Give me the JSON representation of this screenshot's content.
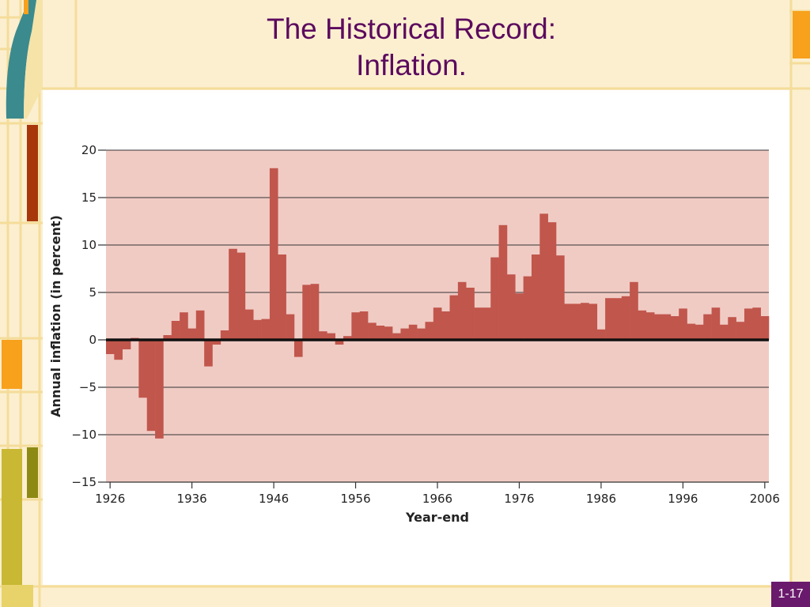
{
  "slide": {
    "title_line1": "The Historical Record:",
    "title_line2": "Inflation.",
    "page_number": "1-17",
    "colors": {
      "title": "#5c0a5e",
      "background": "#fbefd0",
      "orange_accent": "#f7a11c",
      "teal_accent": "#3b8a8e",
      "olive_accent": "#c8b834",
      "page_badge": "#6a1a6c"
    }
  },
  "chart_data": {
    "type": "bar",
    "title": "",
    "xlabel": "Year-end",
    "ylabel": "Annual inflation (in percent)",
    "ylim": [
      -15,
      20
    ],
    "y_ticks": [
      20,
      15,
      10,
      5,
      0,
      -5,
      -10,
      -15
    ],
    "y_tick_labels": [
      "20",
      "15",
      "10",
      "5",
      "0",
      "−5",
      "−10",
      "−15"
    ],
    "x_ticks": [
      1926,
      1936,
      1946,
      1956,
      1966,
      1976,
      1986,
      1996,
      2006
    ],
    "x_tick_labels": [
      "1926",
      "1936",
      "1946",
      "1956",
      "1966",
      "1976",
      "1986",
      "1996",
      "2006"
    ],
    "grid": true,
    "colors": {
      "bar": "#c1564c",
      "plot_background": "#f0cbc4",
      "zero_line": "#111111",
      "grid": "#333333"
    },
    "categories": [
      1926,
      1927,
      1928,
      1929,
      1930,
      1931,
      1932,
      1933,
      1934,
      1935,
      1936,
      1937,
      1938,
      1939,
      1940,
      1941,
      1942,
      1943,
      1944,
      1945,
      1946,
      1947,
      1948,
      1949,
      1950,
      1951,
      1952,
      1953,
      1954,
      1955,
      1956,
      1957,
      1958,
      1959,
      1960,
      1961,
      1962,
      1963,
      1964,
      1965,
      1966,
      1967,
      1968,
      1969,
      1970,
      1971,
      1972,
      1973,
      1974,
      1975,
      1976,
      1977,
      1978,
      1979,
      1980,
      1981,
      1982,
      1983,
      1984,
      1985,
      1986,
      1987,
      1988,
      1989,
      1990,
      1991,
      1992,
      1993,
      1994,
      1995,
      1996,
      1997,
      1998,
      1999,
      2000,
      2001,
      2002,
      2003,
      2004,
      2005,
      2006
    ],
    "values": [
      -1.5,
      -2.1,
      -1.0,
      0.2,
      -6.1,
      -9.6,
      -10.4,
      0.5,
      2.0,
      2.9,
      1.2,
      3.1,
      -2.8,
      -0.5,
      1.0,
      9.6,
      9.2,
      3.2,
      2.1,
      2.2,
      18.1,
      9.0,
      2.7,
      -1.8,
      5.8,
      5.9,
      0.9,
      0.7,
      -0.5,
      0.4,
      2.9,
      3.0,
      1.8,
      1.5,
      1.4,
      0.7,
      1.2,
      1.6,
      1.2,
      1.9,
      3.4,
      3.0,
      4.7,
      6.1,
      5.5,
      3.4,
      3.4,
      8.7,
      12.1,
      6.9,
      4.9,
      6.7,
      9.0,
      13.3,
      12.4,
      8.9,
      3.8,
      3.8,
      3.9,
      3.8,
      1.1,
      4.4,
      4.4,
      4.6,
      6.1,
      3.1,
      2.9,
      2.7,
      2.7,
      2.5,
      3.3,
      1.7,
      1.6,
      2.7,
      3.4,
      1.6,
      2.4,
      1.9,
      3.3,
      3.4,
      2.5
    ]
  }
}
